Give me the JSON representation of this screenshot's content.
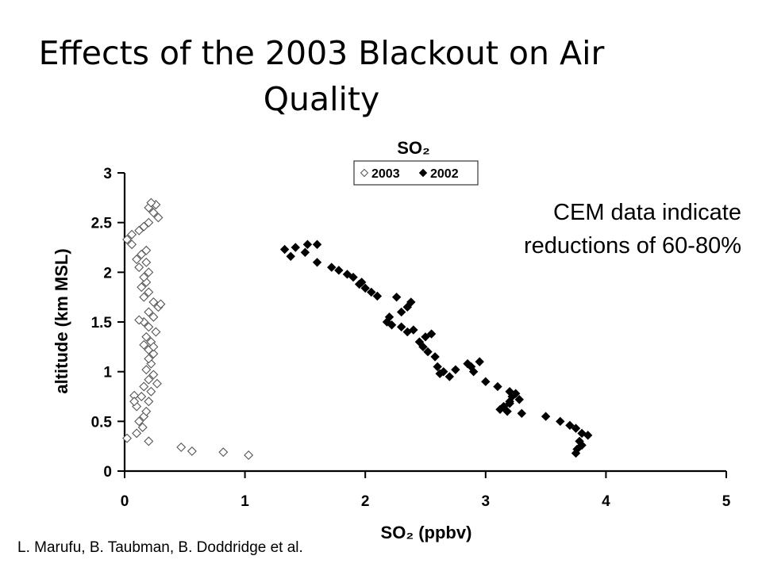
{
  "slide": {
    "title_lines": [
      "Effects of the 2003 Blackout on Air",
      "Quality"
    ],
    "callout_lines": [
      "CEM data indicate",
      "reductions of 60-80%"
    ],
    "credit": "L. Marufu, B. Taubman, B. Doddridge et al."
  },
  "chart_data": {
    "type": "scatter",
    "title": "SO₂",
    "xlabel": "SO₂ (ppbv)",
    "ylabel": "altitude (km MSL)",
    "xlim": [
      0,
      5
    ],
    "ylim": [
      0,
      3
    ],
    "xticks": [
      "0",
      "1",
      "2",
      "3",
      "4",
      "5"
    ],
    "yticks": [
      "0",
      "0.5",
      "1",
      "1.5",
      "2",
      "2.5",
      "3"
    ],
    "grid": false,
    "legend_position": "top-center",
    "series": [
      {
        "name": "2003",
        "marker": "open-diamond",
        "color": "#555555",
        "points": [
          [
            0.02,
            0.33
          ],
          [
            0.1,
            0.38
          ],
          [
            0.15,
            0.44
          ],
          [
            0.2,
            0.3
          ],
          [
            0.47,
            0.24
          ],
          [
            0.56,
            0.2
          ],
          [
            0.82,
            0.19
          ],
          [
            1.03,
            0.16
          ],
          [
            0.12,
            0.5
          ],
          [
            0.16,
            0.55
          ],
          [
            0.18,
            0.6
          ],
          [
            0.1,
            0.65
          ],
          [
            0.2,
            0.7
          ],
          [
            0.14,
            0.75
          ],
          [
            0.22,
            0.8
          ],
          [
            0.08,
            0.76
          ],
          [
            0.16,
            0.85
          ],
          [
            0.27,
            0.88
          ],
          [
            0.2,
            0.92
          ],
          [
            0.24,
            0.97
          ],
          [
            0.18,
            1.02
          ],
          [
            0.22,
            1.08
          ],
          [
            0.2,
            1.13
          ],
          [
            0.24,
            1.18
          ],
          [
            0.2,
            1.22
          ],
          [
            0.16,
            1.27
          ],
          [
            0.22,
            1.3
          ],
          [
            0.18,
            1.35
          ],
          [
            0.26,
            1.4
          ],
          [
            0.2,
            1.45
          ],
          [
            0.16,
            1.5
          ],
          [
            0.24,
            1.55
          ],
          [
            0.2,
            1.6
          ],
          [
            0.28,
            1.65
          ],
          [
            0.24,
            1.7
          ],
          [
            0.16,
            1.75
          ],
          [
            0.2,
            1.8
          ],
          [
            0.14,
            1.85
          ],
          [
            0.18,
            1.9
          ],
          [
            0.16,
            1.95
          ],
          [
            0.2,
            2.0
          ],
          [
            0.12,
            2.05
          ],
          [
            0.18,
            2.1
          ],
          [
            0.1,
            2.13
          ],
          [
            0.14,
            2.18
          ],
          [
            0.18,
            2.22
          ],
          [
            0.06,
            2.28
          ],
          [
            0.02,
            2.33
          ],
          [
            0.06,
            2.38
          ],
          [
            0.12,
            2.42
          ],
          [
            0.16,
            2.46
          ],
          [
            0.2,
            2.5
          ],
          [
            0.28,
            2.55
          ],
          [
            0.24,
            2.6
          ],
          [
            0.2,
            2.65
          ],
          [
            0.26,
            2.68
          ],
          [
            0.22,
            2.7
          ],
          [
            0.08,
            0.7
          ],
          [
            0.24,
            1.25
          ],
          [
            0.12,
            1.52
          ],
          [
            0.3,
            1.68
          ]
        ]
      },
      {
        "name": "2002",
        "marker": "filled-diamond",
        "color": "#000000",
        "points": [
          [
            1.33,
            2.23
          ],
          [
            1.38,
            2.16
          ],
          [
            1.42,
            2.25
          ],
          [
            1.5,
            2.2
          ],
          [
            1.52,
            2.28
          ],
          [
            1.6,
            2.28
          ],
          [
            1.6,
            2.1
          ],
          [
            1.72,
            2.05
          ],
          [
            1.78,
            2.02
          ],
          [
            1.85,
            1.98
          ],
          [
            1.9,
            1.95
          ],
          [
            1.95,
            1.88
          ],
          [
            2.0,
            1.84
          ],
          [
            2.05,
            1.8
          ],
          [
            2.1,
            1.76
          ],
          [
            1.97,
            1.9
          ],
          [
            2.2,
            1.55
          ],
          [
            2.18,
            1.5
          ],
          [
            2.22,
            1.47
          ],
          [
            2.26,
            1.75
          ],
          [
            2.3,
            1.6
          ],
          [
            2.35,
            1.65
          ],
          [
            2.38,
            1.7
          ],
          [
            2.4,
            1.42
          ],
          [
            2.3,
            1.45
          ],
          [
            2.45,
            1.3
          ],
          [
            2.5,
            1.35
          ],
          [
            2.55,
            1.38
          ],
          [
            2.48,
            1.25
          ],
          [
            2.52,
            1.2
          ],
          [
            2.58,
            1.15
          ],
          [
            2.6,
            1.05
          ],
          [
            2.65,
            1.0
          ],
          [
            2.7,
            0.95
          ],
          [
            2.62,
            0.98
          ],
          [
            2.75,
            1.02
          ],
          [
            2.85,
            1.08
          ],
          [
            2.88,
            1.05
          ],
          [
            2.95,
            1.1
          ],
          [
            3.0,
            0.9
          ],
          [
            3.1,
            0.85
          ],
          [
            3.2,
            0.8
          ],
          [
            3.22,
            0.75
          ],
          [
            3.25,
            0.78
          ],
          [
            3.28,
            0.72
          ],
          [
            3.2,
            0.7
          ],
          [
            3.15,
            0.65
          ],
          [
            3.12,
            0.62
          ],
          [
            3.18,
            0.6
          ],
          [
            3.3,
            0.58
          ],
          [
            3.5,
            0.55
          ],
          [
            3.62,
            0.5
          ],
          [
            3.7,
            0.46
          ],
          [
            3.75,
            0.43
          ],
          [
            3.8,
            0.38
          ],
          [
            3.85,
            0.36
          ],
          [
            3.78,
            0.3
          ],
          [
            3.8,
            0.26
          ],
          [
            3.76,
            0.22
          ],
          [
            3.75,
            0.18
          ],
          [
            3.2,
            0.68
          ],
          [
            2.9,
            1.0
          ],
          [
            2.35,
            1.4
          ]
        ]
      }
    ]
  }
}
